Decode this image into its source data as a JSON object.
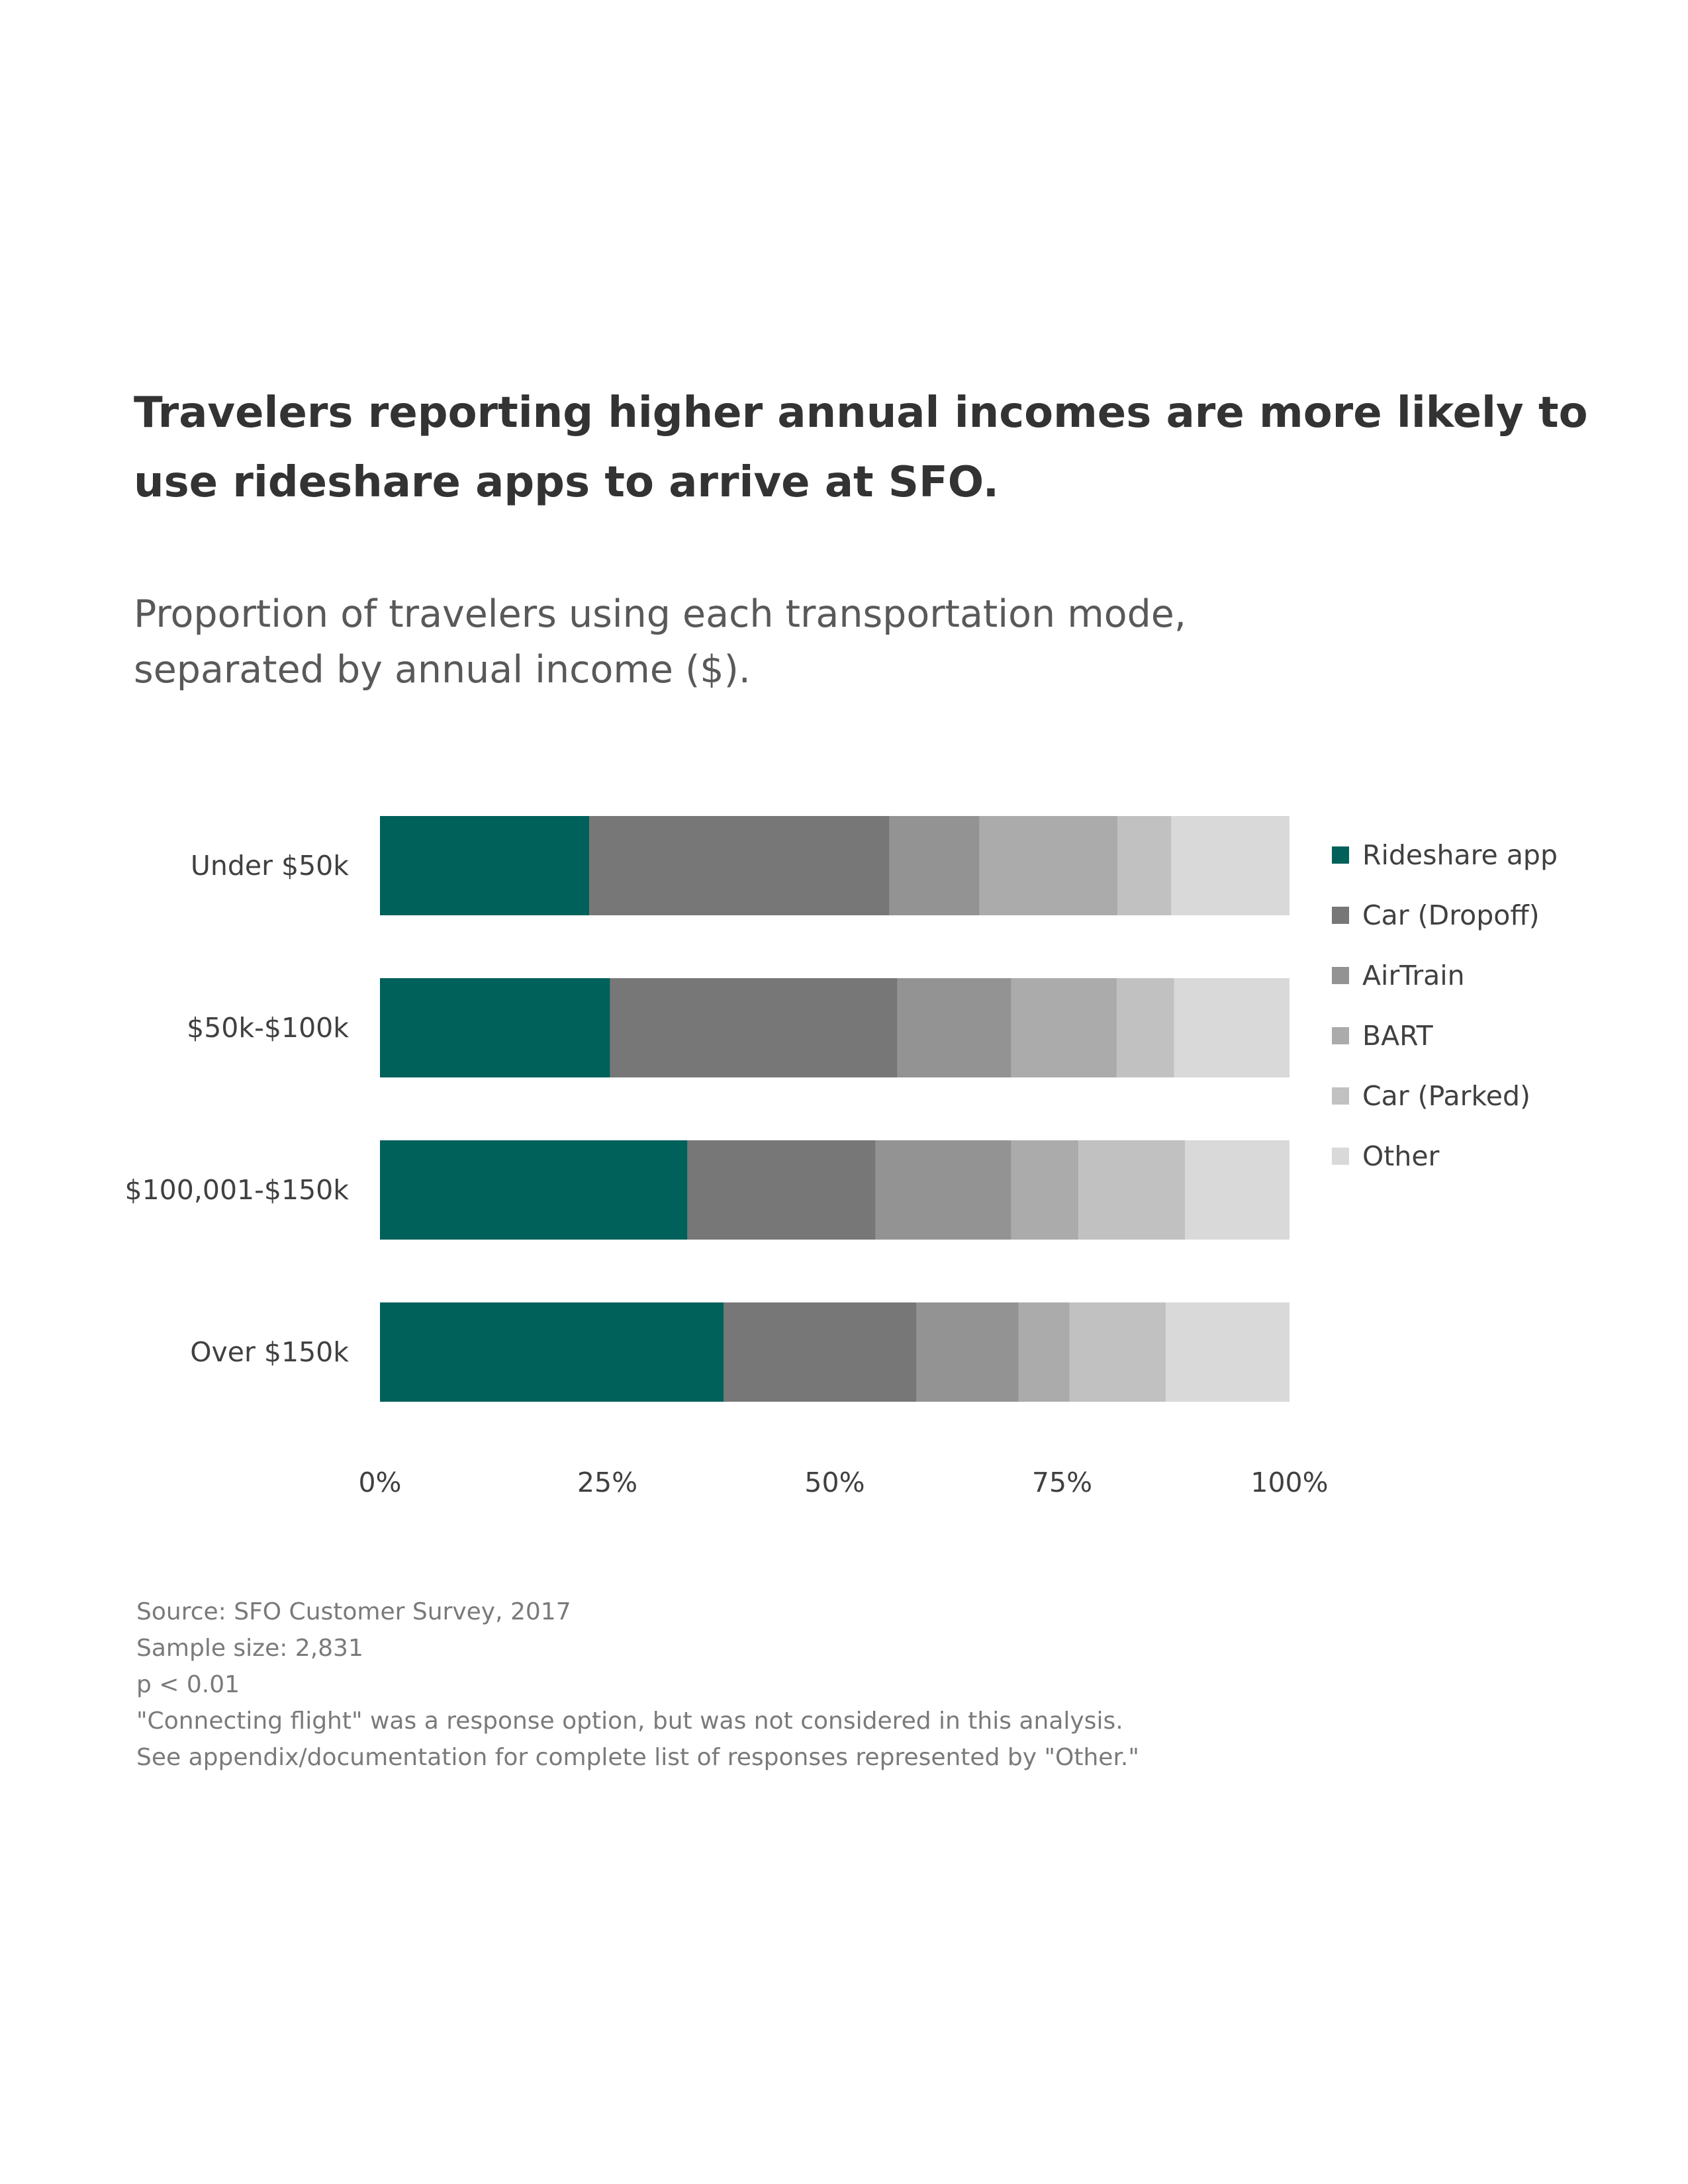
{
  "title_lines": [
    "Travelers reporting higher annual incomes are more likely to",
    "use rideshare apps to arrive at SFO."
  ],
  "subtitle_lines": [
    "Proportion of travelers using each transportation mode,",
    "separated by annual income ($)."
  ],
  "chart_data": {
    "type": "bar",
    "orientation": "horizontal",
    "stacked": true,
    "normalized": true,
    "categories": [
      "Under $50k",
      "$50k-$100k",
      "$100,001-$150k",
      "Over $150k"
    ],
    "series": [
      {
        "name": "Rideshare app",
        "color": "#00605A",
        "values": [
          23,
          25.3,
          33.8,
          37.8
        ]
      },
      {
        "name": "Car (Dropoff)",
        "color": "#777777",
        "values": [
          33,
          31.6,
          20.7,
          21.2
        ]
      },
      {
        "name": "AirTrain",
        "color": "#939393",
        "values": [
          9.9,
          12.5,
          14.9,
          11.2
        ]
      },
      {
        "name": "BART",
        "color": "#ABABAB",
        "values": [
          15.2,
          11.6,
          7.4,
          5.6
        ]
      },
      {
        "name": "Car (Parked)",
        "color": "#C1C1C1",
        "values": [
          5.9,
          6.3,
          11.7,
          10.6
        ]
      },
      {
        "name": "Other",
        "color": "#D9D9D9",
        "values": [
          13,
          12.7,
          11.5,
          13.6
        ]
      }
    ],
    "xlim": [
      0,
      100
    ],
    "x_ticks": [
      "0%",
      "25%",
      "50%",
      "75%",
      "100%"
    ],
    "legend_position": "right",
    "grid": false
  },
  "notes": [
    "Source: SFO Customer Survey, 2017",
    "Sample size: 2,831",
    "p < 0.01",
    "\"Connecting flight\" was a response option, but was not considered in this analysis.",
    "See appendix/documentation for complete list of responses represented by \"Other.\""
  ]
}
